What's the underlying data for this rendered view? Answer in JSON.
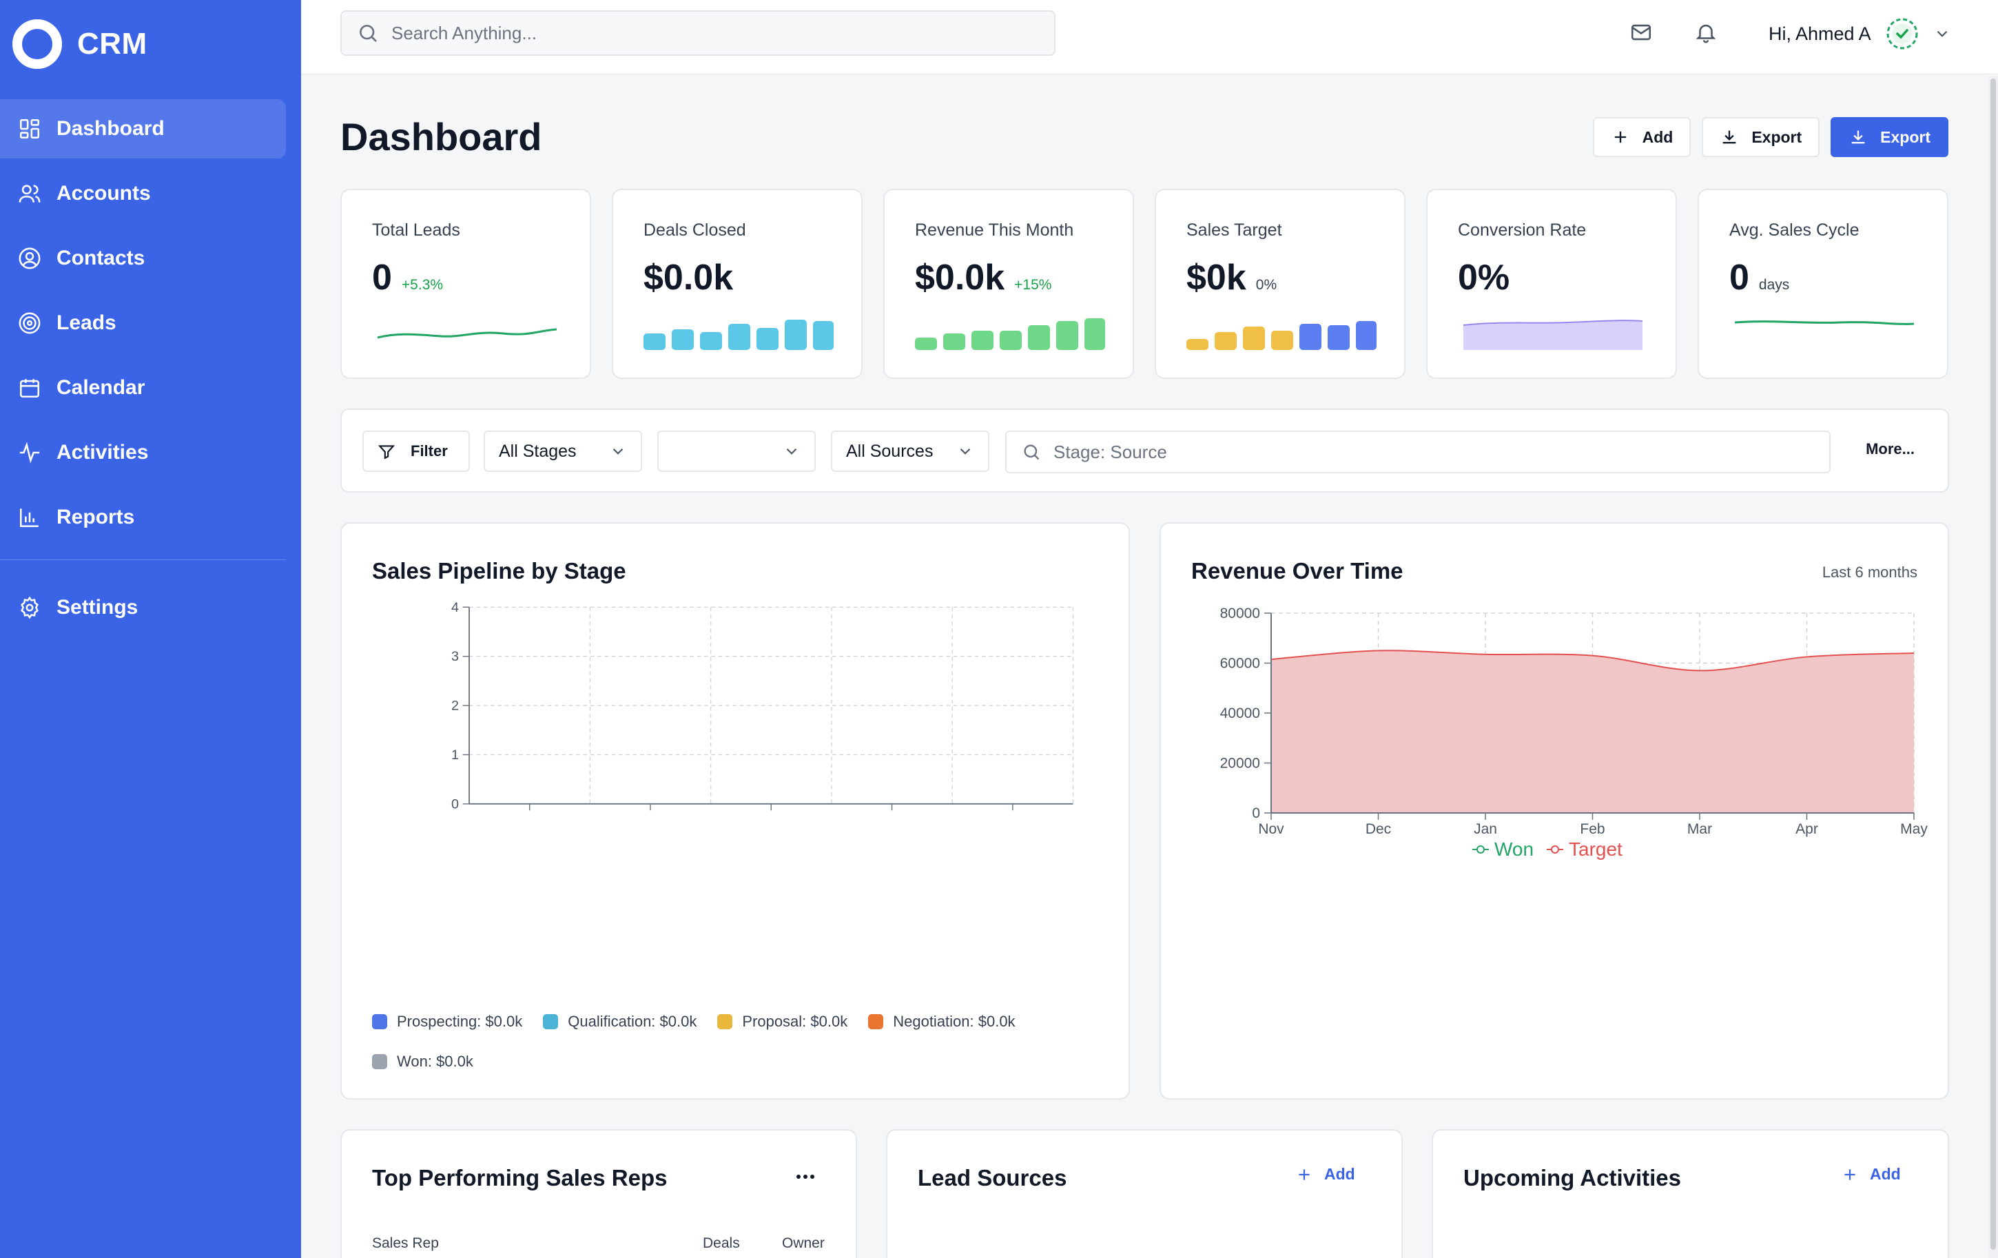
{
  "brand": {
    "name": "CRM"
  },
  "sidebar": {
    "items": [
      {
        "label": "Dashboard",
        "icon": "grid-icon",
        "active": true
      },
      {
        "label": "Accounts",
        "icon": "users-icon"
      },
      {
        "label": "Contacts",
        "icon": "user-circle-icon"
      },
      {
        "label": "Leads",
        "icon": "target-icon"
      },
      {
        "label": "Calendar",
        "icon": "calendar-icon"
      },
      {
        "label": "Activities",
        "icon": "activity-icon"
      },
      {
        "label": "Reports",
        "icon": "bar-chart-icon"
      }
    ],
    "settings": {
      "label": "Settings",
      "icon": "gear-icon"
    }
  },
  "topbar": {
    "search_placeholder": "Search Anything...",
    "greeting": "Hi, Ahmed A"
  },
  "page": {
    "title": "Dashboard"
  },
  "actions": {
    "add": "Add",
    "export": "Export",
    "export_primary": "Export"
  },
  "stats": [
    {
      "label": "Total Leads",
      "value": "0",
      "delta": "+5.3%",
      "spark": "line",
      "color": "#22a565"
    },
    {
      "label": "Deals Closed",
      "value": "$0.0k",
      "delta": "",
      "spark": "bars",
      "color": "#5bc7e6"
    },
    {
      "label": "Revenue This Month",
      "value": "$0.0k",
      "delta": "+15%",
      "spark": "bars",
      "color": "#6fd888"
    },
    {
      "label": "Sales Target",
      "value": "$0k",
      "sub": "0%",
      "spark": "bars-mixed",
      "colors": [
        "#f0c046",
        "#5b7ff0"
      ]
    },
    {
      "label": "Conversion Rate",
      "value": "0%",
      "spark": "area",
      "color": "#b9a8f6"
    },
    {
      "label": "Avg. Sales Cycle",
      "value": "0",
      "sub": "days",
      "spark": "line",
      "color": "#22a565"
    }
  ],
  "filters": {
    "filter_label": "Filter",
    "stages": "All Stages",
    "blank_select": "",
    "sources": "All Sources",
    "search_placeholder": "Stage: Source",
    "more": "More..."
  },
  "pipeline": {
    "title": "Sales Pipeline by Stage",
    "legend": [
      {
        "label": "Prospecting: $0.0k",
        "color": "#4f76e8"
      },
      {
        "label": "Qualification: $0.0k",
        "color": "#4bb3d6"
      },
      {
        "label": "Proposal: $0.0k",
        "color": "#e8b73c"
      },
      {
        "label": "Negotiation: $0.0k",
        "color": "#ea7530"
      },
      {
        "label": "Won: $0.0k",
        "color": "#9ca3af"
      }
    ]
  },
  "revenue": {
    "title": "Revenue Over Time",
    "note": "Last 6 months"
  },
  "chart_data": [
    {
      "type": "bar",
      "title": "Sales Pipeline by Stage",
      "categories": [
        "Prospecting",
        "Qualification",
        "Proposal",
        "Negotiation",
        "Won"
      ],
      "values": [
        0,
        0,
        0,
        0,
        0
      ],
      "ylim": [
        0,
        4
      ],
      "yticks": [
        0,
        1,
        2,
        3,
        4
      ],
      "grid": true
    },
    {
      "type": "area",
      "title": "Revenue Over Time",
      "categories": [
        "Nov",
        "Dec",
        "Jan",
        "Feb",
        "Mar",
        "Apr",
        "May"
      ],
      "series": [
        {
          "name": "Won",
          "values": [
            0,
            0,
            0,
            0,
            0,
            0,
            0
          ],
          "color": "#22a565"
        },
        {
          "name": "Target",
          "values": [
            61500,
            65000,
            63500,
            63000,
            57000,
            62500,
            64000
          ],
          "color": "#e45050"
        }
      ],
      "ylim": [
        0,
        80000
      ],
      "yticks": [
        0,
        20000,
        40000,
        60000,
        80000
      ],
      "legend": "bottom",
      "grid": true
    }
  ],
  "bottom": {
    "reps": {
      "title": "Top Performing Sales Reps",
      "col_rep": "Sales Rep",
      "col_deals": "Deals",
      "col_owner": "Owner"
    },
    "sources": {
      "title": "Lead Sources",
      "add": "Add"
    },
    "activities": {
      "title": "Upcoming Activities",
      "add": "Add"
    }
  }
}
